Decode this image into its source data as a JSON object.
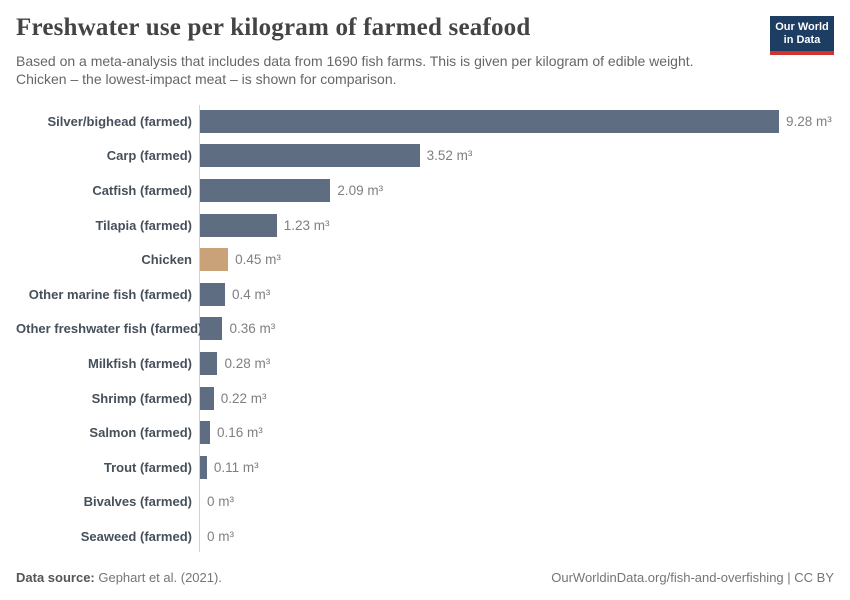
{
  "header": {
    "title": "Freshwater use per kilogram of farmed seafood",
    "subtitle_lines": [
      "Based on a meta-analysis that includes data from 1690 fish farms. This is given per kilogram of edible weight.",
      "Chicken – the lowest-impact meat – is shown for comparison."
    ],
    "logo": {
      "line1": "Our World",
      "line2": "in Data",
      "bg_color": "#1d3d63",
      "accent_color": "#d0342c"
    }
  },
  "chart_data": {
    "type": "bar",
    "orientation": "horizontal",
    "categories": [
      "Silver/bighead (farmed)",
      "Carp (farmed)",
      "Catfish (farmed)",
      "Tilapia (farmed)",
      "Chicken",
      "Other marine fish (farmed)",
      "Other freshwater fish (farmed)",
      "Milkfish (farmed)",
      "Shrimp (farmed)",
      "Salmon (farmed)",
      "Trout (farmed)",
      "Bivalves (farmed)",
      "Seaweed (farmed)"
    ],
    "values": [
      9.28,
      3.52,
      2.09,
      1.23,
      0.45,
      0.4,
      0.36,
      0.28,
      0.22,
      0.16,
      0.11,
      0,
      0
    ],
    "value_labels": [
      "9.28 m³",
      "3.52 m³",
      "2.09 m³",
      "1.23 m³",
      "0.45 m³",
      "0.4 m³",
      "0.36 m³",
      "0.28 m³",
      "0.22 m³",
      "0.16 m³",
      "0.11 m³",
      "0 m³",
      "0 m³"
    ],
    "unit": "m³",
    "xlim": [
      0,
      9.28
    ],
    "grid": false,
    "legend": "none",
    "highlight_index": 4,
    "bar_colors": {
      "default": "#5f6d82",
      "highlight": "#c9a27a"
    },
    "title": "Freshwater use per kilogram of farmed seafood",
    "xlabel": "",
    "ylabel": ""
  },
  "footer": {
    "datasource_label": "Data source:",
    "datasource_value": " Gephart et al. (2021).",
    "link": "OurWorldinData.org/fish-and-overfishing",
    "license": " | CC BY"
  }
}
